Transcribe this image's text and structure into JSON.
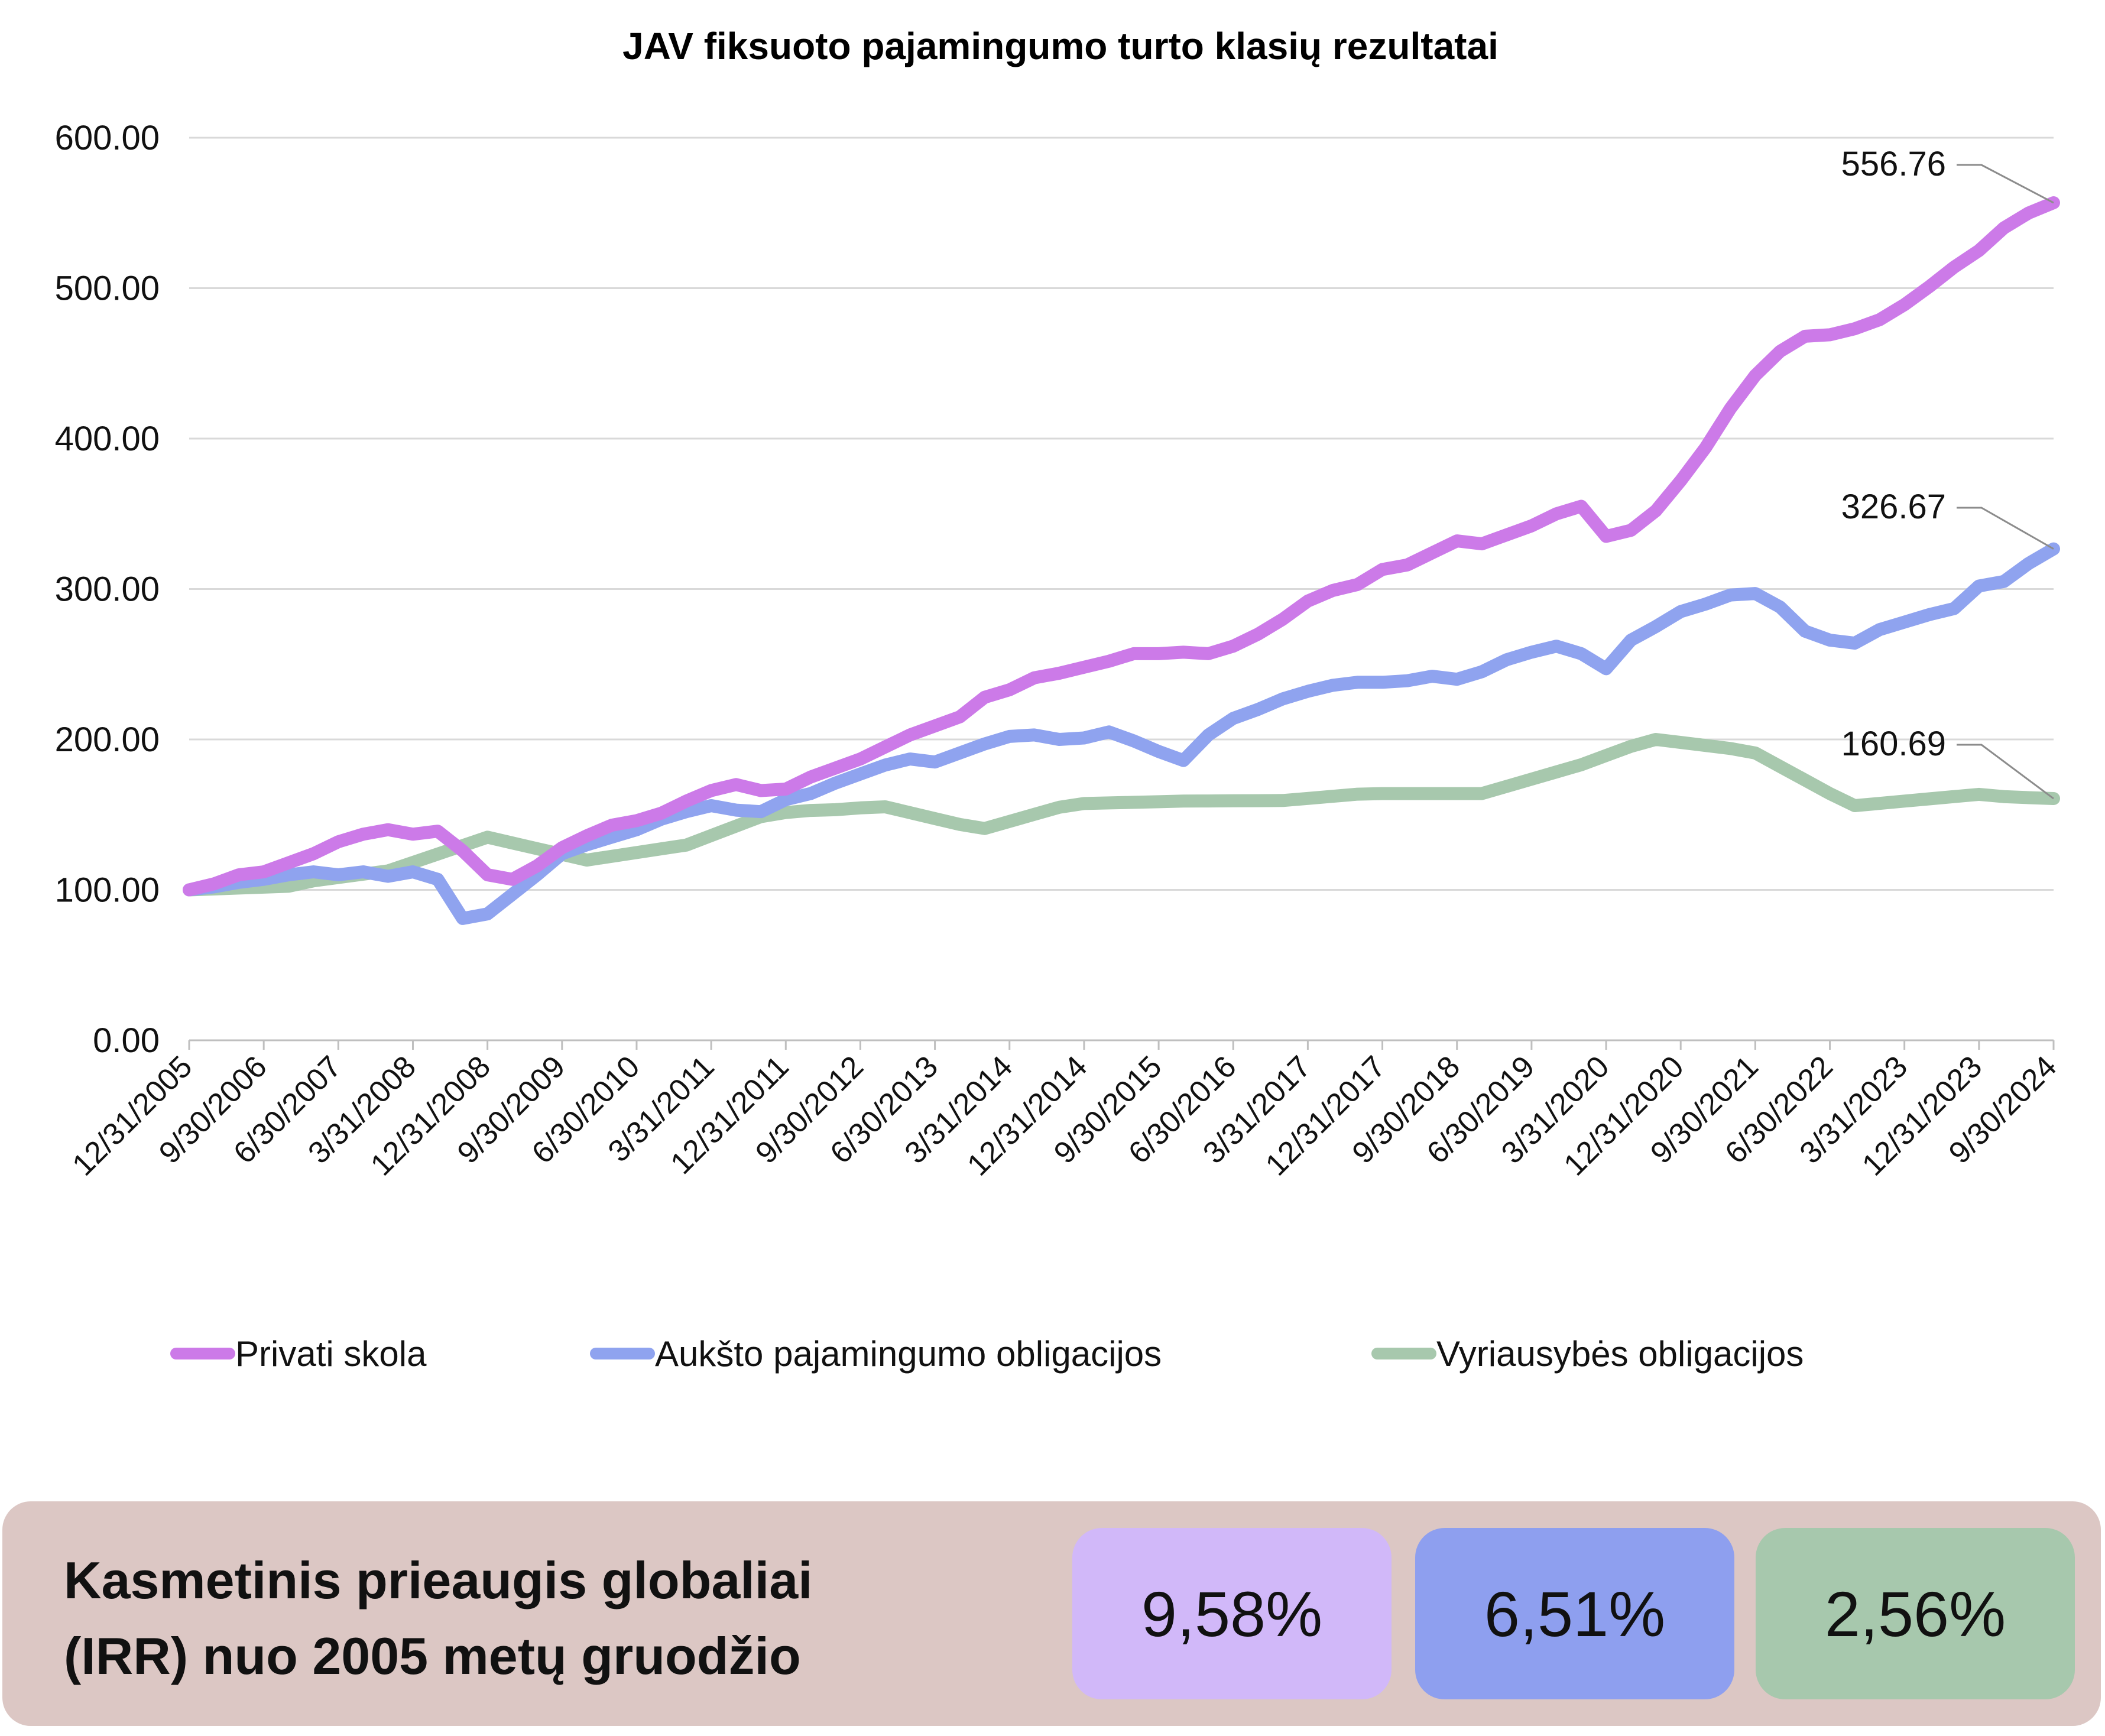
{
  "chart_data": {
    "type": "line",
    "title": "JAV fiksuoto pajamingumo turto klasių rezultatai",
    "xlabel": "",
    "ylabel": "",
    "ylim": [
      0,
      600
    ],
    "y_ticks": [
      "0.00",
      "100.00",
      "200.00",
      "300.00",
      "400.00",
      "500.00",
      "600.00"
    ],
    "x_tick_labels": [
      "12/31/2005",
      "9/30/2006",
      "6/30/2007",
      "3/31/2008",
      "12/31/2008",
      "9/30/2009",
      "6/30/2010",
      "3/31/2011",
      "12/31/2011",
      "9/30/2012",
      "6/30/2013",
      "3/31/2014",
      "12/31/2014",
      "9/30/2015",
      "6/30/2016",
      "3/31/2017",
      "12/31/2017",
      "9/30/2018",
      "6/30/2019",
      "3/31/2020",
      "12/31/2020",
      "9/30/2021",
      "6/30/2022",
      "3/31/2023",
      "12/31/2023",
      "9/30/2024"
    ],
    "grid": true,
    "legend_position": "bottom",
    "x_note": "values are quarterly, 12/31/2005 through 9/30/2024 (76 quarters)",
    "series": [
      {
        "name": "Privati skola",
        "color": "#cc7ae8",
        "end_label": "556.76",
        "values": [
          100,
          104,
          110,
          112,
          118,
          124,
          132,
          137,
          140,
          137,
          139,
          126,
          110,
          107,
          116,
          128,
          136,
          143,
          146,
          151,
          159,
          166,
          170,
          166,
          167,
          175,
          181,
          187,
          195,
          203,
          209,
          215,
          228,
          233,
          241,
          244,
          248,
          252,
          257,
          257,
          258,
          257,
          262,
          270,
          280,
          292,
          299,
          303,
          313,
          316,
          324,
          332,
          330,
          336,
          342,
          350,
          355,
          335,
          339,
          352,
          372,
          394,
          420,
          442,
          458,
          468,
          469,
          473,
          479,
          489,
          501,
          514,
          525,
          540,
          550,
          556.76
        ]
      },
      {
        "name": "Aukšto pajamingumo obligacijos",
        "color": "#8fa3ef",
        "end_label": "326.67",
        "values": [
          100,
          102,
          105,
          107,
          110,
          112,
          110,
          112,
          109,
          112,
          107,
          81,
          84,
          97,
          110,
          124,
          130,
          135,
          140,
          147,
          152,
          156,
          153,
          152,
          160,
          164,
          171,
          177,
          183,
          187,
          185,
          191,
          197,
          202,
          203,
          200,
          201,
          205,
          199,
          192,
          186,
          203,
          214,
          220,
          227,
          232,
          236,
          238,
          238,
          239,
          242,
          240,
          245,
          253,
          258,
          262,
          257,
          247,
          266,
          275,
          285,
          290,
          296,
          297,
          288,
          272,
          266,
          264,
          273,
          278,
          283,
          287,
          302,
          305,
          317,
          326.67
        ]
      },
      {
        "name": "Vyriausybės obligacijos",
        "color": "#a7c8ad",
        "end_label": "160.69",
        "values": [
          100,
          100.6,
          101.2,
          101.8,
          102.4,
          106,
          108.2,
          110.4,
          112.6,
          118.2,
          123.8,
          129.4,
          135,
          131.2,
          127.4,
          123.6,
          119.8,
          122.3,
          124.8,
          127.3,
          129.8,
          136.1,
          142.4,
          148.7,
          151.4,
          152.8,
          153.3,
          154.5,
          155.2,
          151.3,
          147.4,
          143.5,
          140.8,
          145.5,
          150.2,
          154.9,
          157.4,
          157.8,
          158.2,
          158.6,
          159,
          159.1,
          159.2,
          159.3,
          159.4,
          160.8,
          162.2,
          163.6,
          164,
          164,
          164,
          164,
          164,
          168.8,
          173.6,
          178.4,
          183.2,
          189.3,
          195.4,
          200,
          198,
          196,
          194,
          191,
          182,
          173,
          164,
          156,
          157.5,
          159,
          160.5,
          162,
          163.5,
          162,
          161.3,
          160.69
        ]
      }
    ]
  },
  "irr": {
    "title_line1": "Kasmetinis prieaugis globaliai",
    "title_line2": "(IRR) nuo 2005 metų gruodžio",
    "items": [
      {
        "value": "9,58%",
        "color": "#d1b8f9"
      },
      {
        "value": "6,51%",
        "color": "#8e9fef"
      },
      {
        "value": "2,56%",
        "color": "#a7c8ad"
      }
    ]
  }
}
